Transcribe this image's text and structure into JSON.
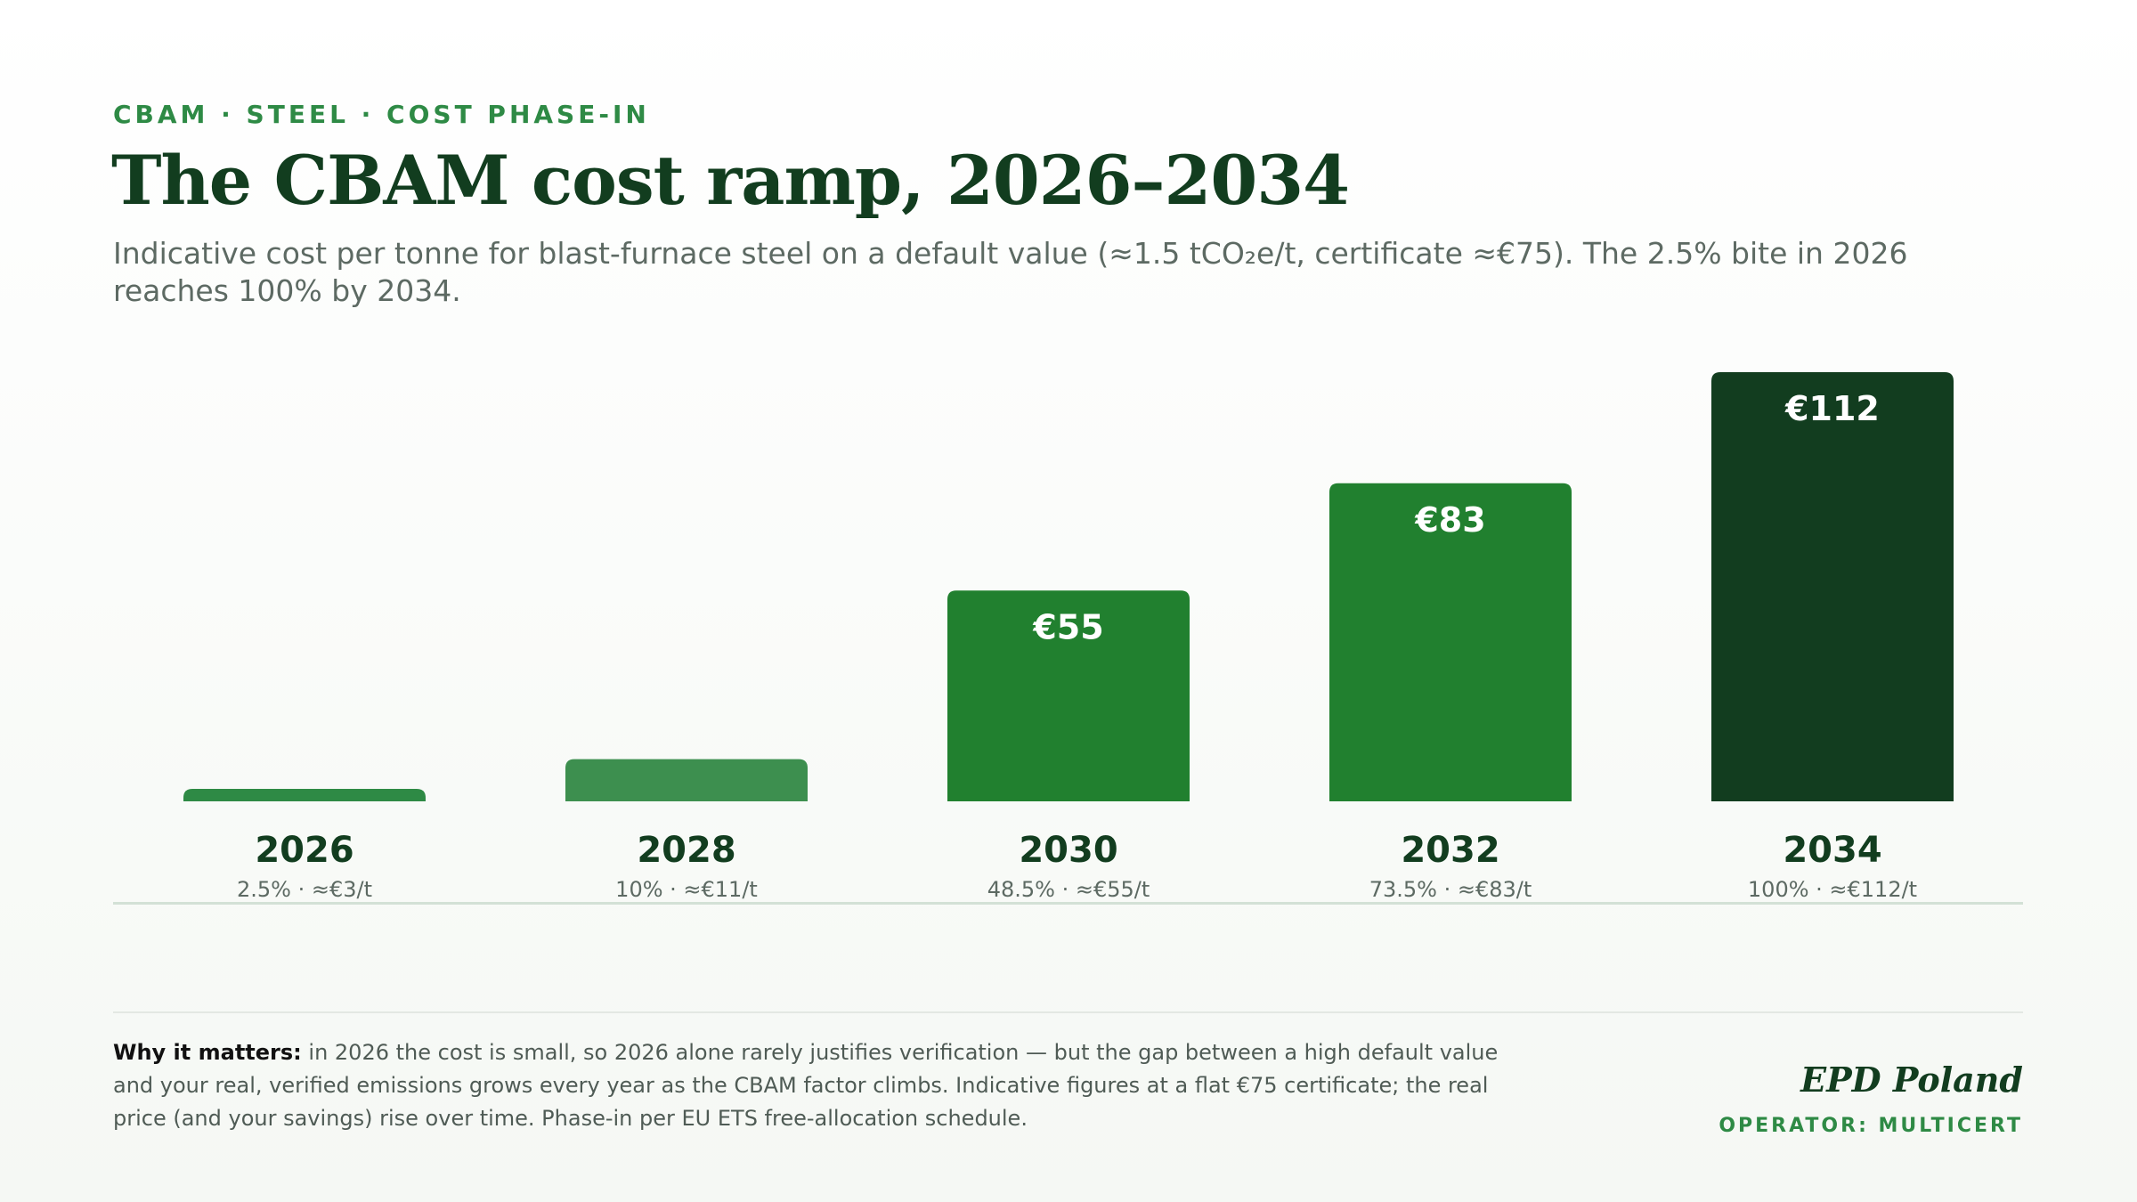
{
  "header": {
    "eyebrow": "CBAM · STEEL · COST PHASE-IN",
    "title": "The CBAM cost ramp, 2026–2034",
    "subtitle": "Indicative cost per tonne for blast-furnace steel on a default value (≈1.5 tCO₂e/t, certificate ≈€75). The 2.5% bite in 2026 reaches 100% by 2034."
  },
  "chart_data": {
    "type": "bar",
    "categories": [
      "2026",
      "2028",
      "2030",
      "2032",
      "2034"
    ],
    "values": [
      3,
      11,
      55,
      83,
      112
    ],
    "bar_labels": [
      "",
      "",
      "€55",
      "€83",
      "€112"
    ],
    "sub_labels": [
      "2.5% · ≈€3/t",
      "10% · ≈€11/t",
      "48.5% · ≈€55/t",
      "73.5% · ≈€83/t",
      "100% · ≈€112/t"
    ],
    "colors": [
      "#2e8a45",
      "#3d8f4f",
      "#21802f",
      "#21802f",
      "#123d1f"
    ],
    "ylim": [
      0,
      112
    ],
    "grid": false,
    "legend": "none"
  },
  "footer": {
    "note_lead": "Why it matters:",
    "note_text": " in 2026 the cost is small, so 2026 alone rarely justifies verification — but the gap between a high default value and your real, verified emissions grows every year as the CBAM factor climbs. Indicative figures at a flat €75 certificate; the real price (and your savings) rise over time. Phase-in per EU ETS free-allocation schedule.",
    "brand": "EPD Poland",
    "operator": "OPERATOR: MULTICERT"
  }
}
